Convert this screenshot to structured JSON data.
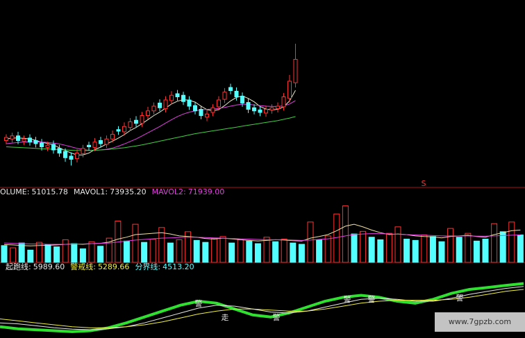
{
  "chart_data": [
    {
      "type": "candlestick",
      "ylim": [
        8,
        14
      ],
      "rising_color": "#ff3232",
      "falling_color": "#54ffff",
      "open": [
        9.5,
        9.55,
        9.65,
        9.48,
        9.58,
        9.5,
        9.42,
        9.28,
        9.38,
        9.25,
        9.15,
        9.0,
        8.92,
        9.08,
        9.35,
        9.28,
        9.5,
        9.38,
        9.55,
        9.85,
        9.78,
        9.92,
        10.15,
        10.05,
        10.3,
        10.45,
        10.7,
        10.52,
        10.78,
        11.0,
        10.95,
        10.8,
        10.62,
        10.5,
        10.25,
        10.4,
        10.58,
        10.82,
        11.2,
        11.08,
        10.92,
        10.72,
        10.55,
        10.48,
        10.38,
        10.48,
        10.52,
        10.58,
        10.85,
        11.35
      ],
      "high": [
        9.7,
        9.75,
        9.78,
        9.66,
        9.7,
        9.62,
        9.55,
        9.46,
        9.5,
        9.36,
        9.25,
        9.12,
        9.22,
        9.36,
        9.46,
        9.58,
        9.62,
        9.66,
        9.82,
        9.96,
        10.08,
        10.22,
        10.28,
        10.42,
        10.58,
        10.72,
        10.82,
        10.92,
        11.08,
        11.12,
        11.06,
        10.92,
        10.74,
        10.62,
        10.48,
        10.66,
        10.92,
        11.18,
        11.32,
        11.2,
        11.04,
        10.84,
        10.66,
        10.6,
        10.62,
        10.66,
        10.72,
        11.02,
        11.6,
        12.6
      ],
      "low": [
        9.38,
        9.44,
        9.38,
        9.36,
        9.34,
        9.28,
        9.18,
        9.16,
        9.08,
        8.98,
        8.82,
        8.7,
        8.8,
        8.96,
        9.18,
        9.16,
        9.28,
        9.26,
        9.44,
        9.68,
        9.66,
        9.8,
        9.94,
        9.94,
        10.18,
        10.34,
        10.44,
        10.4,
        10.66,
        10.78,
        10.64,
        10.48,
        10.34,
        10.18,
        10.12,
        10.28,
        10.46,
        10.7,
        10.98,
        10.78,
        10.58,
        10.38,
        10.34,
        10.28,
        10.26,
        10.36,
        10.4,
        10.46,
        10.72,
        11.2
      ],
      "close": [
        9.6,
        9.65,
        9.5,
        9.55,
        9.45,
        9.4,
        9.3,
        9.35,
        9.2,
        9.1,
        8.95,
        8.9,
        9.1,
        9.25,
        9.3,
        9.45,
        9.4,
        9.55,
        9.7,
        9.8,
        9.95,
        10.1,
        10.05,
        10.3,
        10.45,
        10.6,
        10.55,
        10.8,
        10.95,
        10.9,
        10.75,
        10.6,
        10.45,
        10.3,
        10.35,
        10.55,
        10.8,
        11.05,
        11.1,
        10.9,
        10.7,
        10.5,
        10.45,
        10.4,
        10.5,
        10.55,
        10.6,
        10.9,
        11.4,
        12.1
      ],
      "series": [
        {
          "color": "#e8e8c8",
          "values": [
            9.55,
            9.58,
            9.58,
            9.57,
            9.55,
            9.51,
            9.44,
            9.41,
            9.36,
            9.27,
            9.18,
            9.1,
            9.04,
            9.04,
            9.1,
            9.21,
            9.29,
            9.39,
            9.48,
            9.58,
            9.69,
            9.82,
            9.92,
            10.04,
            10.17,
            10.3,
            10.41,
            10.54,
            10.67,
            10.76,
            10.81,
            10.79,
            10.73,
            10.6,
            10.49,
            10.45,
            10.49,
            10.62,
            10.77,
            10.88,
            10.93,
            10.85,
            10.74,
            10.59,
            10.51,
            10.48,
            10.5,
            10.58,
            10.77,
            11.11
          ]
        },
        {
          "color": "#e040e0",
          "values": [
            9.4,
            9.42,
            9.44,
            9.45,
            9.46,
            9.46,
            9.45,
            9.44,
            9.42,
            9.39,
            9.35,
            9.3,
            9.25,
            9.21,
            9.19,
            9.19,
            9.2,
            9.22,
            9.26,
            9.32,
            9.39,
            9.47,
            9.55,
            9.65,
            9.75,
            9.85,
            9.95,
            10.06,
            10.17,
            10.27,
            10.35,
            10.41,
            10.45,
            10.48,
            10.5,
            10.51,
            10.53,
            10.56,
            10.6,
            10.64,
            10.66,
            10.66,
            10.64,
            10.62,
            10.6,
            10.59,
            10.59,
            10.61,
            10.67,
            10.78
          ]
        },
        {
          "color": "#40d040",
          "values": [
            9.3,
            9.29,
            9.28,
            9.27,
            9.26,
            9.25,
            9.24,
            9.23,
            9.22,
            9.21,
            9.2,
            9.19,
            9.18,
            9.18,
            9.18,
            9.19,
            9.2,
            9.21,
            9.23,
            9.25,
            9.27,
            9.3,
            9.33,
            9.36,
            9.4,
            9.44,
            9.48,
            9.52,
            9.56,
            9.6,
            9.64,
            9.68,
            9.72,
            9.75,
            9.78,
            9.81,
            9.84,
            9.87,
            9.9,
            9.93,
            9.96,
            9.99,
            10.02,
            10.05,
            10.08,
            10.11,
            10.14,
            10.18,
            10.22,
            10.27
          ]
        }
      ],
      "marker": "S"
    },
    {
      "type": "bar",
      "ylim": [
        0,
        200000
      ],
      "rising_color": "#ff3232",
      "falling_color": "#54ffff",
      "legend": [
        {
          "label": "OLUME:",
          "value_label": "51015.78",
          "color": "#e8e8e8"
        },
        {
          "label": "MAVOL1:",
          "value_label": "73935.20",
          "color": "#e8e8e8"
        },
        {
          "label": "MAVOL2:",
          "value_label": "71939.00",
          "color": "#e040e0"
        }
      ],
      "values": [
        52000,
        45000,
        60000,
        38000,
        62000,
        55000,
        48000,
        70000,
        58000,
        42000,
        64000,
        50000,
        75000,
        128000,
        66000,
        118000,
        62000,
        72000,
        108000,
        60000,
        70000,
        95000,
        68000,
        62000,
        74000,
        80000,
        60000,
        70000,
        66000,
        58000,
        78000,
        64000,
        72000,
        60000,
        56000,
        125000,
        70000,
        82000,
        150000,
        175000,
        88000,
        96000,
        78000,
        70000,
        90000,
        110000,
        72000,
        68000,
        85000,
        80000,
        64000,
        105000,
        78000,
        90000,
        66000,
        72000,
        120000,
        95000,
        125000,
        85000
      ],
      "rising": [
        false,
        true,
        false,
        false,
        true,
        false,
        false,
        true,
        false,
        false,
        true,
        false,
        true,
        true,
        false,
        true,
        false,
        true,
        true,
        false,
        true,
        true,
        false,
        false,
        true,
        true,
        false,
        true,
        false,
        false,
        true,
        false,
        true,
        false,
        false,
        true,
        false,
        true,
        true,
        true,
        false,
        true,
        false,
        false,
        true,
        true,
        false,
        false,
        true,
        false,
        false,
        true,
        false,
        true,
        false,
        false,
        true,
        false,
        true,
        false
      ],
      "series": [
        {
          "color": "#f0e0a0",
          "values": [
            55000,
            54000,
            52000,
            51000,
            52000,
            53000,
            54000,
            56000,
            57000,
            56000,
            58000,
            59000,
            63000,
            72000,
            78000,
            86000,
            88000,
            90000,
            92000,
            88000,
            82000,
            80000,
            78000,
            74000,
            72000,
            75000,
            73000,
            70000,
            68000,
            66000,
            68000,
            70000,
            69000,
            67000,
            66000,
            75000,
            80000,
            86000,
            98000,
            112000,
            118000,
            110000,
            100000,
            92000,
            86000,
            88000,
            86000,
            82000,
            80000,
            79000,
            76000,
            80000,
            82000,
            84000,
            80000,
            78000,
            86000,
            92000,
            98000,
            100000
          ]
        },
        {
          "color": "#e040e0",
          "values": [
            60000,
            59000,
            58000,
            57000,
            57000,
            56000,
            56000,
            56000,
            57000,
            57000,
            58000,
            59000,
            60000,
            63000,
            66000,
            69000,
            71000,
            73000,
            75000,
            76000,
            77000,
            78000,
            78000,
            77000,
            76000,
            75000,
            74000,
            73000,
            72000,
            71000,
            70000,
            70000,
            70000,
            69000,
            68000,
            69000,
            71000,
            73000,
            77000,
            82000,
            86000,
            88000,
            89000,
            89000,
            88000,
            87000,
            86000,
            85000,
            84000,
            83000,
            82000,
            82000,
            82000,
            82000,
            81000,
            81000,
            82000,
            83000,
            84000,
            85000
          ]
        }
      ]
    },
    {
      "type": "line",
      "ylim": [
        3500,
        6500
      ],
      "legend": [
        {
          "label": "起跑线:",
          "value_label": "5989.60",
          "color": "#e8e8e8"
        },
        {
          "label": "警戒线:",
          "value_label": "5289.66",
          "color": "#f0f040"
        },
        {
          "label": "分界线:",
          "value_label": "4513.20",
          "color": "#54ffff"
        }
      ],
      "series": [
        {
          "color": "#30e030",
          "width": 4,
          "values": [
            4000,
            3900,
            3850,
            3800,
            3750,
            3800,
            3950,
            4200,
            4500,
            4800,
            5100,
            5300,
            5200,
            4900,
            4600,
            4500,
            4700,
            5000,
            5300,
            5500,
            5600,
            5500,
            5300,
            5200,
            5400,
            5700,
            5900,
            6000,
            6100,
            6200
          ]
        },
        {
          "color": "#e8e8e8",
          "width": 1,
          "values": [
            4200,
            4150,
            4050,
            3950,
            3880,
            3850,
            3900,
            4000,
            4200,
            4450,
            4700,
            4950,
            5100,
            5050,
            4900,
            4750,
            4700,
            4800,
            5000,
            5200,
            5400,
            5450,
            5400,
            5300,
            5300,
            5450,
            5650,
            5800,
            5950,
            6050
          ]
        },
        {
          "color": "#f0f040",
          "width": 1,
          "values": [
            4400,
            4300,
            4200,
            4100,
            4000,
            3950,
            3950,
            4000,
            4100,
            4250,
            4450,
            4650,
            4800,
            4900,
            4900,
            4850,
            4800,
            4800,
            4900,
            5050,
            5200,
            5300,
            5350,
            5350,
            5350,
            5400,
            5500,
            5650,
            5800,
            5900
          ]
        }
      ],
      "annotations": [
        "警",
        "走",
        "警",
        "警",
        "警",
        "警"
      ]
    }
  ],
  "watermark": "www.7gpzb.com"
}
